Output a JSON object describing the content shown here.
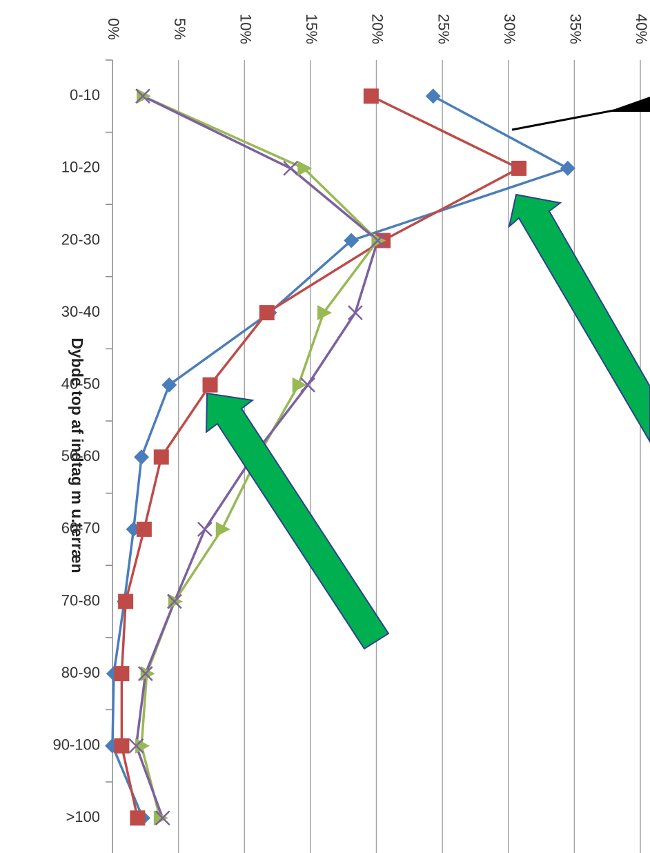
{
  "chart_data": {
    "type": "line",
    "orientation": "horizontal",
    "y_axis_label": "Dybde top af indtag m u.terræn",
    "categories": [
      "0-10",
      "10-20",
      "20-30",
      "30-40",
      "40-50",
      "50-60",
      "60-70",
      "70-80",
      "80-90",
      "90-100",
      ">100"
    ],
    "xlim": [
      0,
      40
    ],
    "xticks": [
      {
        "value": 0,
        "label": "0%"
      },
      {
        "value": 5,
        "label": "5%"
      },
      {
        "value": 10,
        "label": "10%"
      },
      {
        "value": 15,
        "label": "15%"
      },
      {
        "value": 20,
        "label": "20%"
      },
      {
        "value": 25,
        "label": "25%"
      },
      {
        "value": 30,
        "label": "30%"
      },
      {
        "value": 35,
        "label": "35%"
      },
      {
        "value": 40,
        "label": "40%"
      }
    ],
    "grid": true,
    "series": [
      {
        "color": "#4a7ebb",
        "marker": "diamond",
        "values": [
          24.3,
          34.5,
          18.1,
          11.9,
          4.3,
          2.2,
          1.6,
          0.9,
          0.1,
          0,
          2.3
        ]
      },
      {
        "color": "#be4b48",
        "marker": "square",
        "values": [
          19.6,
          30.8,
          20.5,
          11.7,
          7.4,
          3.7,
          2.4,
          1.0,
          0.7,
          0.7,
          1.9
        ]
      },
      {
        "color": "#98b954",
        "marker": "triangle",
        "values": [
          2.3,
          14.5,
          20.1,
          16.0,
          14.1,
          11.0,
          8.3,
          4.7,
          2.6,
          2.2,
          3.6
        ]
      },
      {
        "color": "#7d60a0",
        "marker": "x",
        "values": [
          2.3,
          13.5,
          20.1,
          18.4,
          14.8,
          10.6,
          7.0,
          4.7,
          2.5,
          1.8,
          3.8
        ]
      }
    ]
  }
}
